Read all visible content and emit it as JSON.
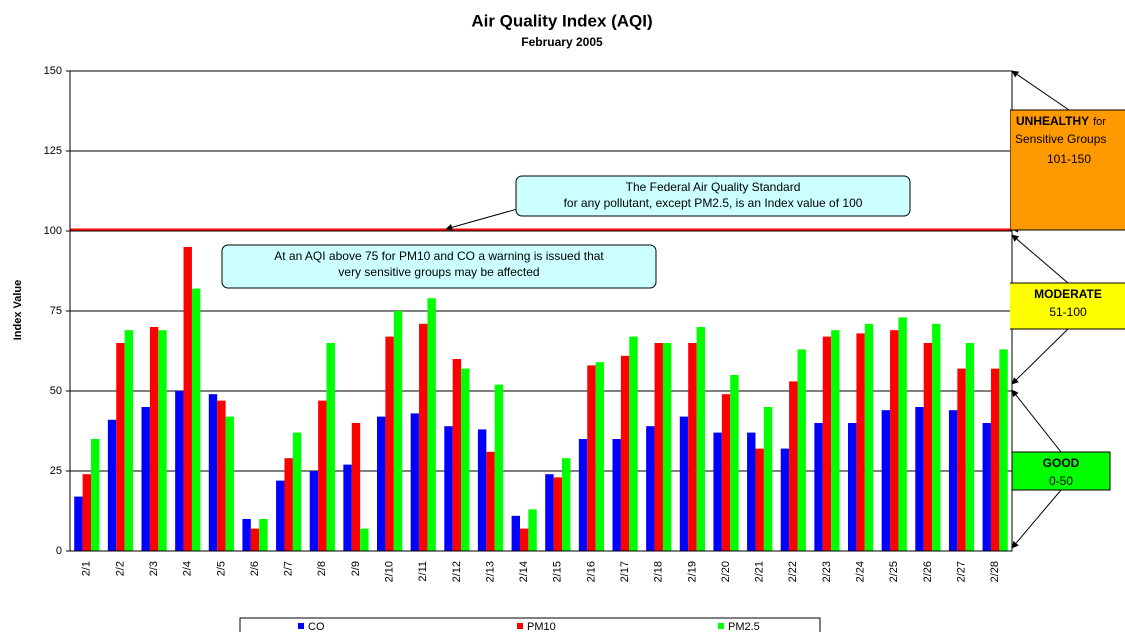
{
  "chart_data": {
    "type": "bar",
    "title": "Air Quality Index  (AQI)",
    "subtitle": "February 2005",
    "y_label": "Index Value",
    "categories": [
      "2/1",
      "2/2",
      "2/3",
      "2/4",
      "2/5",
      "2/6",
      "2/7",
      "2/8",
      "2/9",
      "2/10",
      "2/11",
      "2/12",
      "2/13",
      "2/14",
      "2/15",
      "2/16",
      "2/17",
      "2/18",
      "2/19",
      "2/20",
      "2/21",
      "2/22",
      "2/23",
      "2/24",
      "2/25",
      "2/26",
      "2/27",
      "2/28"
    ],
    "series": [
      {
        "name": "CO",
        "color": "#0000ff",
        "values": [
          17,
          41,
          45,
          50,
          49,
          10,
          22,
          25,
          27,
          42,
          43,
          39,
          38,
          11,
          24,
          35,
          35,
          39,
          42,
          37,
          37,
          32,
          40,
          40,
          44,
          45,
          44,
          40
        ]
      },
      {
        "name": "PM10",
        "color": "#ff0000",
        "values": [
          24,
          65,
          70,
          95,
          47,
          7,
          29,
          47,
          40,
          67,
          71,
          60,
          31,
          7,
          23,
          58,
          61,
          65,
          65,
          49,
          32,
          53,
          67,
          68,
          69,
          65,
          57,
          57
        ]
      },
      {
        "name": "PM2.5",
        "color": "#00ff00",
        "values": [
          35,
          69,
          69,
          82,
          42,
          10,
          37,
          65,
          7,
          75,
          79,
          57,
          52,
          13,
          29,
          59,
          67,
          65,
          70,
          55,
          45,
          63,
          69,
          71,
          73,
          71,
          65,
          63
        ]
      }
    ],
    "ylim": [
      0,
      150
    ],
    "yticks": [
      0,
      25,
      50,
      75,
      100,
      125,
      150
    ],
    "grid": true,
    "reference_line": {
      "value": 100,
      "color": "#ff0000"
    },
    "annotations": [
      {
        "lines": [
          "The Federal Air Quality Standard",
          "for any pollutant, except PM2.5, is an Index value of 100"
        ]
      },
      {
        "lines": [
          "At an AQI above 75 for PM10 and CO a warning is issued that",
          "very sensitive groups may be affected"
        ]
      }
    ],
    "bands": [
      {
        "title": "UNHEALTHY",
        "lines": [
          "for",
          "Sensitive Groups"
        ],
        "range": "101-150",
        "color": "#ff9900"
      },
      {
        "title": "MODERATE",
        "lines": [],
        "range": "51-100",
        "color": "#ffff00"
      },
      {
        "title": "GOOD",
        "lines": [],
        "range": "0-50",
        "color": "#00ff00"
      }
    ]
  }
}
